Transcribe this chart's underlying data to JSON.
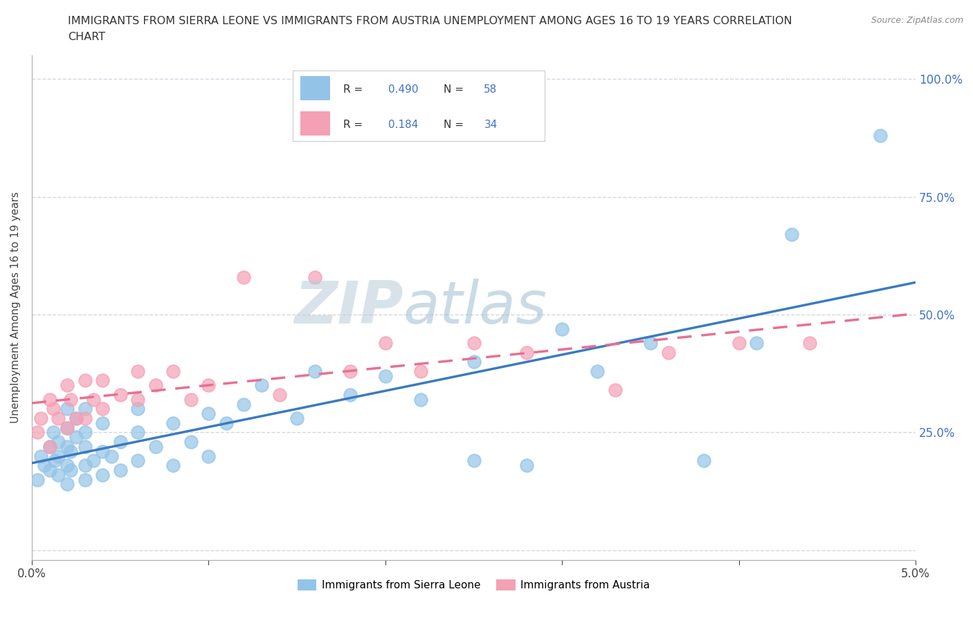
{
  "title_line1": "IMMIGRANTS FROM SIERRA LEONE VS IMMIGRANTS FROM AUSTRIA UNEMPLOYMENT AMONG AGES 16 TO 19 YEARS CORRELATION",
  "title_line2": "CHART",
  "source": "Source: ZipAtlas.com",
  "ylabel": "Unemployment Among Ages 16 to 19 years",
  "x_min": 0.0,
  "x_max": 0.05,
  "y_min": -0.02,
  "y_max": 1.05,
  "x_ticks": [
    0.0,
    0.01,
    0.02,
    0.03,
    0.04,
    0.05
  ],
  "x_tick_labels": [
    "0.0%",
    "",
    "",
    "",
    "",
    "5.0%"
  ],
  "y_ticks": [
    0.0,
    0.25,
    0.5,
    0.75,
    1.0
  ],
  "y_tick_labels_right": [
    "",
    "25.0%",
    "50.0%",
    "75.0%",
    "100.0%"
  ],
  "sierra_leone_R": 0.49,
  "sierra_leone_N": 58,
  "austria_R": 0.184,
  "austria_N": 34,
  "sierra_leone_color": "#93c4e8",
  "austria_color": "#f4a0b5",
  "trend_sl_color": "#3a7bbf",
  "trend_au_color": "#e87090",
  "background_color": "#ffffff",
  "grid_color": "#d0d8e0",
  "watermark_color": "#c8d8e8",
  "sl_label": "Immigrants from Sierra Leone",
  "au_label": "Immigrants from Austria",
  "sierra_leone_x": [
    0.0003,
    0.0005,
    0.0007,
    0.001,
    0.001,
    0.0012,
    0.0013,
    0.0015,
    0.0015,
    0.0015,
    0.002,
    0.002,
    0.002,
    0.002,
    0.002,
    0.0022,
    0.0022,
    0.0025,
    0.0025,
    0.003,
    0.003,
    0.003,
    0.003,
    0.003,
    0.0035,
    0.004,
    0.004,
    0.004,
    0.0045,
    0.005,
    0.005,
    0.006,
    0.006,
    0.006,
    0.007,
    0.008,
    0.008,
    0.009,
    0.01,
    0.01,
    0.011,
    0.012,
    0.013,
    0.015,
    0.016,
    0.018,
    0.02,
    0.022,
    0.025,
    0.025,
    0.028,
    0.03,
    0.032,
    0.035,
    0.038,
    0.041,
    0.043,
    0.048
  ],
  "sierra_leone_y": [
    0.15,
    0.2,
    0.18,
    0.22,
    0.17,
    0.25,
    0.19,
    0.16,
    0.2,
    0.23,
    0.14,
    0.18,
    0.22,
    0.26,
    0.3,
    0.17,
    0.21,
    0.24,
    0.28,
    0.15,
    0.18,
    0.22,
    0.25,
    0.3,
    0.19,
    0.16,
    0.21,
    0.27,
    0.2,
    0.17,
    0.23,
    0.19,
    0.25,
    0.3,
    0.22,
    0.18,
    0.27,
    0.23,
    0.2,
    0.29,
    0.27,
    0.31,
    0.35,
    0.28,
    0.38,
    0.33,
    0.37,
    0.32,
    0.4,
    0.19,
    0.18,
    0.47,
    0.38,
    0.44,
    0.19,
    0.44,
    0.67,
    0.88
  ],
  "austria_x": [
    0.0003,
    0.0005,
    0.001,
    0.001,
    0.0012,
    0.0015,
    0.002,
    0.002,
    0.0022,
    0.0025,
    0.003,
    0.003,
    0.0035,
    0.004,
    0.004,
    0.005,
    0.006,
    0.006,
    0.007,
    0.008,
    0.009,
    0.01,
    0.012,
    0.014,
    0.016,
    0.018,
    0.02,
    0.022,
    0.025,
    0.028,
    0.033,
    0.036,
    0.04,
    0.044
  ],
  "austria_y": [
    0.25,
    0.28,
    0.32,
    0.22,
    0.3,
    0.28,
    0.35,
    0.26,
    0.32,
    0.28,
    0.36,
    0.28,
    0.32,
    0.3,
    0.36,
    0.33,
    0.38,
    0.32,
    0.35,
    0.38,
    0.32,
    0.35,
    0.58,
    0.33,
    0.58,
    0.38,
    0.44,
    0.38,
    0.44,
    0.42,
    0.34,
    0.42,
    0.44,
    0.44
  ]
}
